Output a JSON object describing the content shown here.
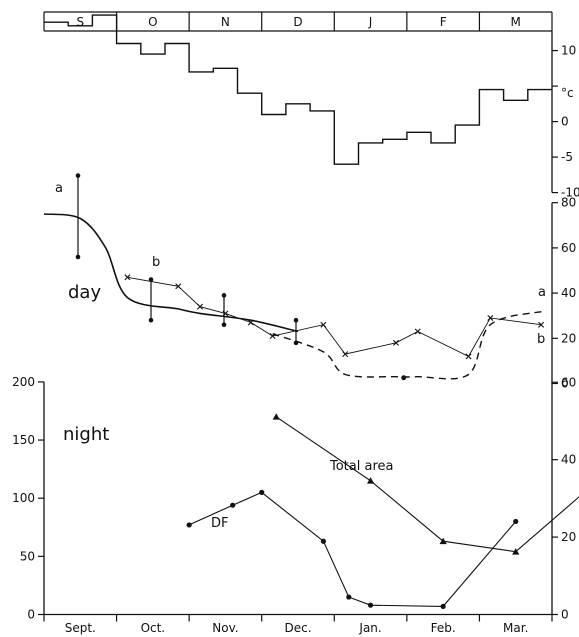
{
  "chart_data": [
    {
      "type": "line",
      "panel": "temperature",
      "month_bands": [
        "S",
        "O",
        "N",
        "D",
        "J",
        "F",
        "M"
      ],
      "y_unit": "°c",
      "y_ticks": [
        "10",
        "5",
        "0",
        "-5",
        "-10"
      ],
      "ylim": [
        -10,
        15
      ],
      "step_series": {
        "values": [
          14,
          13.5,
          15,
          11,
          9.5,
          11,
          7,
          7.5,
          4,
          1,
          2.5,
          1.5,
          -6,
          -3,
          -2.5,
          -1.5,
          -3,
          -0.5,
          4.5,
          3,
          4.5
        ]
      }
    },
    {
      "type": "line",
      "panel": "day",
      "label": "day",
      "y_ticks": [
        "80",
        "60",
        "40",
        "20",
        "0"
      ],
      "ylim": [
        0,
        80
      ],
      "series": [
        {
          "name": "a",
          "style": "solid",
          "x": [
            "Sept.",
            "Sept.",
            "Sept.",
            "Oct.",
            "Oct.",
            "Nov.",
            "Nov.",
            "Dec."
          ],
          "values": [
            75,
            73,
            60,
            38,
            33,
            31,
            28,
            23
          ]
        },
        {
          "name": "a",
          "style": "dashed",
          "x": [
            "Dec.",
            "Dec.",
            "Jan.",
            "Jan.",
            "Feb.",
            "Feb.",
            "Mar.",
            "Mar."
          ],
          "values": [
            22,
            14,
            4,
            3,
            3,
            4,
            26,
            32
          ]
        },
        {
          "name": "b",
          "style": "cross",
          "x": [
            "Oct.",
            "Oct.",
            "Nov.",
            "Nov.",
            "Nov.",
            "Dec.",
            "Dec.",
            "Jan.",
            "Jan.",
            "Feb.",
            "Feb.",
            "Mar.",
            "Mar."
          ],
          "values": [
            47,
            43,
            34,
            31,
            27,
            21,
            26,
            13,
            18,
            23,
            12,
            29,
            26
          ]
        }
      ],
      "error_bars": [
        {
          "x": "Sept.",
          "low": 56,
          "high": 92,
          "mean": 75
        },
        {
          "x": "Oct.",
          "low": 28,
          "high": 46,
          "mean": 37
        },
        {
          "x": "Nov.",
          "low": 26,
          "high": 39,
          "mean": 32
        },
        {
          "x": "Dec.",
          "low": 18,
          "high": 28,
          "mean": 24
        }
      ],
      "annotations": [
        "a",
        "b",
        "a",
        "b"
      ]
    },
    {
      "type": "line",
      "panel": "night",
      "label": "night",
      "categories": [
        "Sept.",
        "Oct.",
        "Nov.",
        "Dec.",
        "Jan.",
        "Feb.",
        "Mar."
      ],
      "left_y_ticks": [
        "200",
        "150",
        "100",
        "50",
        "0"
      ],
      "left_ylim": [
        0,
        200
      ],
      "right_y_ticks": [
        "60",
        "40",
        "20",
        "0"
      ],
      "right_ylim": [
        0,
        60
      ],
      "series": [
        {
          "name": "Total area",
          "marker": "triangle",
          "x": [
            3.2,
            4.5,
            5.5,
            6.5,
            7.5
          ],
          "values": [
            170,
            115,
            63,
            54,
            108
          ]
        },
        {
          "name": "DF",
          "marker": "circle",
          "x": [
            2.0,
            2.6,
            3.0,
            3.85,
            4.2,
            4.5,
            5.5,
            6.5
          ],
          "values": [
            77,
            94,
            105,
            63,
            15,
            8,
            7,
            80
          ]
        }
      ]
    }
  ]
}
